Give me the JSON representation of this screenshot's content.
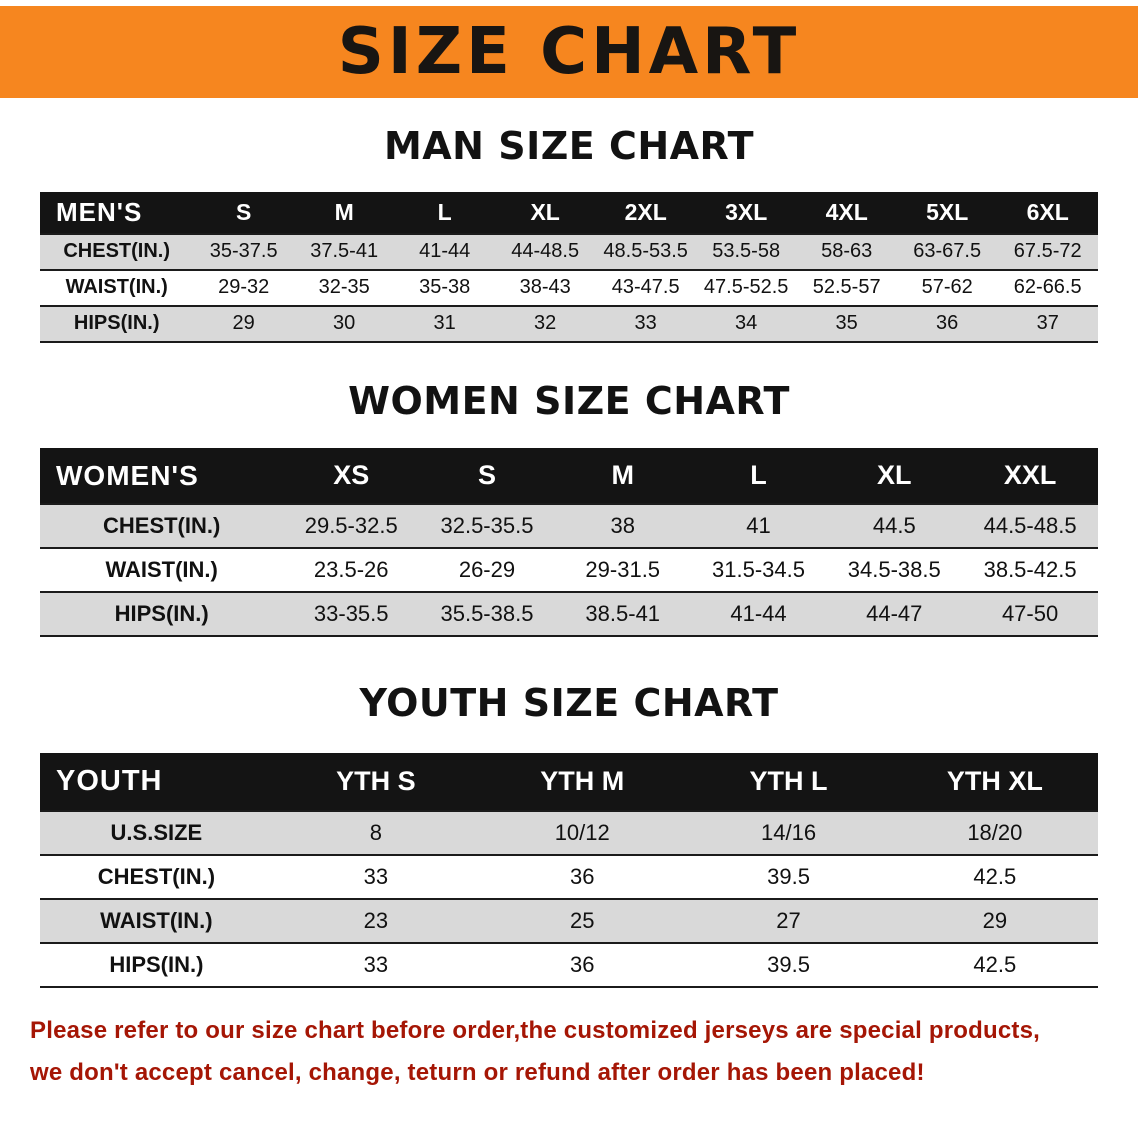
{
  "banner": {
    "title": "SIZE CHART"
  },
  "colors": {
    "banner_bg": "#f6861f",
    "table_header_bg": "#141414",
    "row_stripe": "#d9d9d9",
    "notice_text": "#a51605"
  },
  "sections": {
    "men": {
      "heading": "MAN SIZE CHART",
      "table": {
        "header": [
          "MEN'S",
          "S",
          "M",
          "L",
          "XL",
          "2XL",
          "3XL",
          "4XL",
          "5XL",
          "6XL"
        ],
        "rows": [
          [
            "CHEST(IN.)",
            "35-37.5",
            "37.5-41",
            "41-44",
            "44-48.5",
            "48.5-53.5",
            "53.5-58",
            "58-63",
            "63-67.5",
            "67.5-72"
          ],
          [
            "WAIST(IN.)",
            "29-32",
            "32-35",
            "35-38",
            "38-43",
            "43-47.5",
            "47.5-52.5",
            "52.5-57",
            "57-62",
            "62-66.5"
          ],
          [
            "HIPS(IN.)",
            "29",
            "30",
            "31",
            "32",
            "33",
            "34",
            "35",
            "36",
            "37"
          ]
        ]
      }
    },
    "women": {
      "heading": "WOMEN SIZE CHART",
      "table": {
        "header": [
          "WOMEN'S",
          "XS",
          "S",
          "M",
          "L",
          "XL",
          "XXL"
        ],
        "rows": [
          [
            "CHEST(IN.)",
            "29.5-32.5",
            "32.5-35.5",
            "38",
            "41",
            "44.5",
            "44.5-48.5"
          ],
          [
            "WAIST(IN.)",
            "23.5-26",
            "26-29",
            "29-31.5",
            "31.5-34.5",
            "34.5-38.5",
            "38.5-42.5"
          ],
          [
            "HIPS(IN.)",
            "33-35.5",
            "35.5-38.5",
            "38.5-41",
            "41-44",
            "44-47",
            "47-50"
          ]
        ]
      }
    },
    "youth": {
      "heading": "YOUTH SIZE CHART",
      "table": {
        "header": [
          "YOUTH",
          "YTH S",
          "YTH M",
          "YTH L",
          "YTH XL"
        ],
        "rows": [
          [
            "U.S.SIZE",
            "8",
            "10/12",
            "14/16",
            "18/20"
          ],
          [
            "CHEST(IN.)",
            "33",
            "36",
            "39.5",
            "42.5"
          ],
          [
            "WAIST(IN.)",
            "23",
            "25",
            "27",
            "29"
          ],
          [
            "HIPS(IN.)",
            "33",
            "36",
            "39.5",
            "42.5"
          ]
        ]
      }
    }
  },
  "footer": {
    "line1": "Please refer to our size chart before order,the customized jerseys are special products,",
    "line2": "we don't accept cancel, change, teturn or refund after order has been placed!"
  }
}
